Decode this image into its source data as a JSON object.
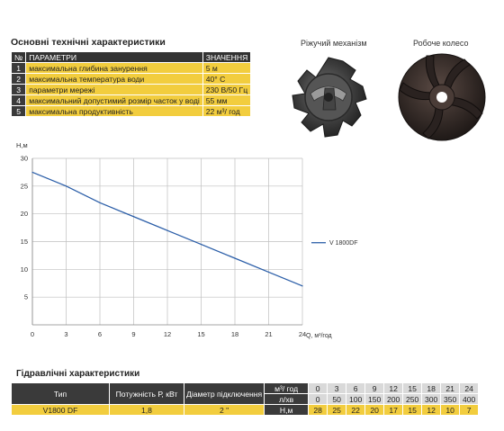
{
  "spec_title": "Основні технічні характеристики",
  "spec_table": {
    "header": {
      "num": "№",
      "param": "ПАРАМЕТРИ",
      "value": "ЗНАЧЕННЯ"
    },
    "rows": [
      {
        "num": "1",
        "param": "максимальна глибина занурення",
        "value": "5 м"
      },
      {
        "num": "2",
        "param": "максимальна температура води",
        "value": "40° С"
      },
      {
        "num": "3",
        "param": "параметри мережі",
        "value": "230 В/50 Гц"
      },
      {
        "num": "4",
        "param": "максимальний допустимий розмір часток у воді",
        "value": "55 мм"
      },
      {
        "num": "5",
        "param": "максимальна продуктивність",
        "value": "22 м³/ год"
      }
    ]
  },
  "images": {
    "cutting_mechanism": {
      "caption": "Ріжучий механізм",
      "icon": "cutting-mechanism-photo"
    },
    "impeller": {
      "caption": "Робоче колесо",
      "icon": "impeller-photo"
    }
  },
  "chart_data": {
    "type": "line",
    "ylabel": "H,м",
    "xlabel": "Q, м³/год",
    "xlim": [
      0,
      24
    ],
    "ylim": [
      0,
      30
    ],
    "x_ticks": [
      0,
      3,
      6,
      9,
      12,
      15,
      18,
      21,
      24
    ],
    "y_ticks": [
      5,
      10,
      15,
      20,
      25,
      30
    ],
    "grid": true,
    "legend_position": "right",
    "series": [
      {
        "name": "V 1800DF",
        "color": "#2b5ea8",
        "x": [
          0,
          3,
          6,
          9,
          12,
          15,
          18,
          21,
          24
        ],
        "y": [
          27.5,
          25,
          22,
          19.5,
          17,
          14.5,
          12,
          9.5,
          7
        ]
      }
    ]
  },
  "hyd_title": "Гідравлічні характеристики",
  "hyd_table": {
    "type_label": "Тип",
    "power_label": "Потужність Р, кВт",
    "diameter_label": "Діаметр підключення",
    "q_m3_label": "м³/ год",
    "q_lmin_label": "л/хв",
    "h_label": "Н,м",
    "q_m3": [
      "0",
      "3",
      "6",
      "9",
      "12",
      "15",
      "18",
      "21",
      "24"
    ],
    "q_lmin": [
      "0",
      "50",
      "100",
      "150",
      "200",
      "250",
      "300",
      "350",
      "400"
    ],
    "model": "V1800 DF",
    "power": "1,8",
    "diameter": "2 \"",
    "h": [
      "28",
      "25",
      "22",
      "20",
      "17",
      "15",
      "12",
      "10",
      "7"
    ]
  }
}
